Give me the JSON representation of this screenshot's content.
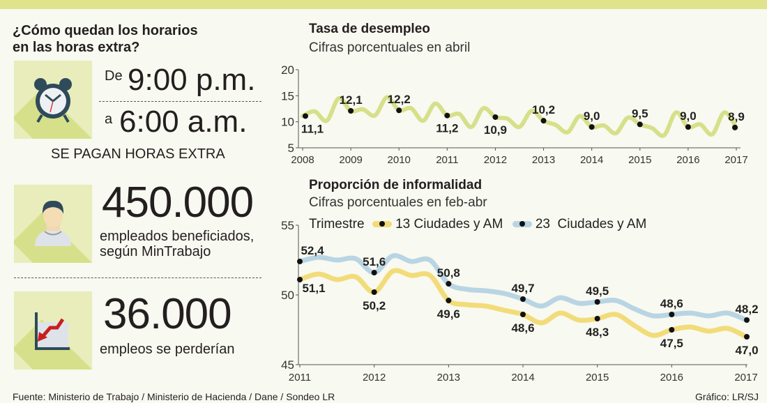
{
  "left": {
    "title_line1": "¿Cómo quedan los horarios",
    "title_line2": "en las horas extra?",
    "from_word": "De",
    "from_time": "9:00 p.m.",
    "to_word": "a",
    "to_time": "6:00 a.m.",
    "caption": "SE PAGAN HORAS EXTRA",
    "stat1_value": "450.000",
    "stat1_line1": "empleados beneficiados,",
    "stat1_line2": "según MinTrabajo",
    "stat2_value": "36.000",
    "stat2_text": "empleos se perderían",
    "icons": [
      "alarm-clock-icon",
      "person-icon",
      "declining-chart-icon"
    ]
  },
  "footer": {
    "source": "Fuente: Ministerio de Trabajo / Ministerio de Hacienda / Dane / Sondeo LR",
    "credit": "Gráfico: LR/SJ"
  },
  "colors": {
    "top_bar": "#dfe38c",
    "unemployment_line": "#d6e08a",
    "series_13": "#f2dc7a",
    "series_23": "#b9d5e4",
    "icon_bg": "#e8edbb"
  },
  "chart_data": [
    {
      "type": "line",
      "title": "Tasa de desempleo",
      "subtitle": "Cifras porcentuales en abril",
      "ylim": [
        5,
        20
      ],
      "yticks": [
        "5",
        "10",
        "15",
        "20"
      ],
      "xticks": [
        "2008",
        "2009",
        "2010",
        "2011",
        "2012",
        "2013",
        "2014",
        "2015",
        "2016",
        "2017"
      ],
      "grid": false,
      "series": [
        {
          "x": [
            2008,
            2008.25,
            2008.5,
            2008.75,
            2009,
            2009.25,
            2009.5,
            2009.75,
            2010,
            2010.25,
            2010.5,
            2010.75,
            2011,
            2011.25,
            2011.5,
            2011.75,
            2012,
            2012.25,
            2012.5,
            2012.75,
            2013,
            2013.25,
            2013.5,
            2013.75,
            2014,
            2014.25,
            2014.5,
            2014.75,
            2015,
            2015.25,
            2015.5,
            2015.75,
            2016,
            2016.25,
            2016.5,
            2016.75,
            2017
          ],
          "values": [
            11.1,
            12.0,
            10.2,
            14.5,
            12.1,
            12.4,
            11.2,
            14.7,
            12.2,
            12.6,
            10.2,
            13.5,
            11.2,
            11.5,
            9.0,
            12.6,
            10.9,
            10.6,
            9.0,
            12.1,
            10.2,
            9.4,
            8.0,
            11.1,
            9.0,
            9.3,
            7.8,
            10.8,
            9.5,
            8.8,
            7.4,
            11.8,
            9.0,
            9.5,
            7.6,
            11.8,
            8.9
          ]
        }
      ],
      "annotations": [
        {
          "x": 2008,
          "label": "11,1"
        },
        {
          "x": 2009,
          "label": "12,1"
        },
        {
          "x": 2010,
          "label": "12,2"
        },
        {
          "x": 2011,
          "label": "11,2"
        },
        {
          "x": 2012,
          "label": "10,9"
        },
        {
          "x": 2013,
          "label": "10,2"
        },
        {
          "x": 2014,
          "label": "9,0"
        },
        {
          "x": 2015,
          "label": "9,5"
        },
        {
          "x": 2016,
          "label": "9,0"
        },
        {
          "x": 2017,
          "label": "8,9"
        }
      ]
    },
    {
      "type": "line",
      "title": "Proporción de informalidad",
      "subtitle": "Cifras porcentuales en feb-abr",
      "legend_title": "Trimestre",
      "legend_position": "top",
      "ylim": [
        45,
        55
      ],
      "yticks": [
        "45",
        "50",
        "55"
      ],
      "xticks": [
        "2011",
        "2012",
        "2013",
        "2014",
        "2015",
        "2016",
        "2017"
      ],
      "grid": false,
      "x": [
        2011,
        2011.25,
        2011.5,
        2011.75,
        2012,
        2012.25,
        2012.5,
        2012.75,
        2013,
        2013.25,
        2013.5,
        2013.75,
        2014,
        2014.25,
        2014.5,
        2014.75,
        2015,
        2015.25,
        2015.5,
        2015.75,
        2016,
        2016.25,
        2016.5,
        2016.75,
        2017
      ],
      "series": [
        {
          "name": "23  Ciudades y AM",
          "values": [
            52.4,
            52.7,
            52.5,
            52.6,
            51.6,
            52.8,
            52.4,
            52.5,
            50.8,
            50.4,
            50.3,
            50.1,
            49.7,
            49.2,
            49.8,
            49.4,
            49.5,
            49.6,
            49.0,
            48.5,
            48.6,
            48.7,
            48.5,
            48.7,
            48.2
          ],
          "annotations": [
            {
              "x": 2011,
              "label": "52,4"
            },
            {
              "x": 2012,
              "label": "51,6"
            },
            {
              "x": 2013,
              "label": "50,8"
            },
            {
              "x": 2014,
              "label": "49,7"
            },
            {
              "x": 2015,
              "label": "49,5"
            },
            {
              "x": 2016,
              "label": "48,6"
            },
            {
              "x": 2017,
              "label": "48,2"
            }
          ]
        },
        {
          "name": "13 Ciudades y AM",
          "values": [
            51.1,
            51.5,
            51.1,
            51.3,
            50.2,
            51.7,
            51.4,
            51.4,
            49.6,
            49.3,
            49.2,
            48.9,
            48.6,
            48.0,
            48.7,
            48.2,
            48.3,
            48.6,
            47.8,
            47.1,
            47.5,
            47.7,
            47.4,
            47.6,
            47.0
          ],
          "annotations": [
            {
              "x": 2011,
              "label": "51,1"
            },
            {
              "x": 2012,
              "label": "50,2"
            },
            {
              "x": 2013,
              "label": "49,6"
            },
            {
              "x": 2014,
              "label": "48,6"
            },
            {
              "x": 2015,
              "label": "48,3"
            },
            {
              "x": 2016,
              "label": "47,5"
            },
            {
              "x": 2017,
              "label": "47,0"
            }
          ]
        }
      ]
    }
  ]
}
